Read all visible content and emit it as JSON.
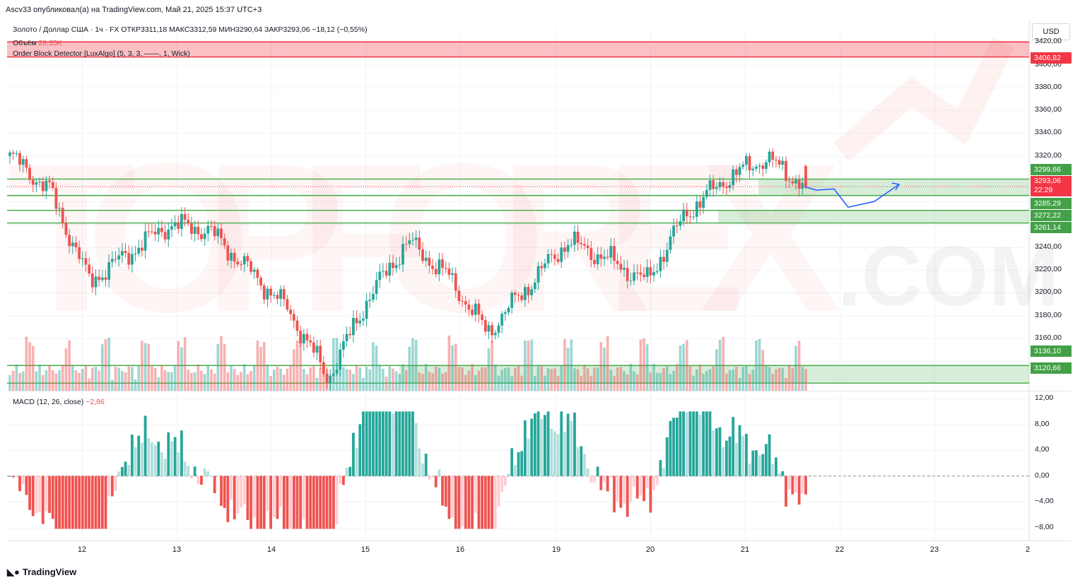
{
  "header": {
    "publisher": "Ascv33 опубликовал(а) на TradingView.com, Май 21, 2025 15:37 UTC+3",
    "symbol_line": "Золото / Доллар США · 1ч · FX  ОТКР3311,18  МАКС3312,59  МИН3290,64  ЗАКР3293,06  −18,12 (−0,55%)",
    "volume_label": "Объём",
    "volume_value": "28,35K",
    "indicator_label": "Order Block Detector [LuxAlgo] (5, 3, 3, ——, 1, Wick)",
    "macd_label": "MACD (12, 26, close)",
    "macd_value": "−2,86",
    "currency": "USD"
  },
  "watermark": {
    "text": "TOPFOREX",
    "suffix": ".COM"
  },
  "colors": {
    "bull": "#26a69a",
    "bear": "#ef5350",
    "bull_light": "#b2dfdb",
    "bear_light": "#ffcdd2",
    "zone_green": "#4caf50",
    "zone_red": "#f23645",
    "path": "#2962ff"
  },
  "price_axis": {
    "labels": [
      "3420,00",
      "3400,00",
      "3380,00",
      "3360,00",
      "3340,00",
      "3320,00",
      "3240,00",
      "3220,00",
      "3200,00",
      "3180,00",
      "3160,00"
    ],
    "range": [
      3114,
      3432
    ]
  },
  "macd_axis": {
    "labels": [
      "12,00",
      "8,00",
      "4,00",
      "0,00",
      "−4,00",
      "−8,00"
    ],
    "range": [
      -10,
      13
    ]
  },
  "price_boxes": [
    {
      "label": "3406,82",
      "color": "#f23645"
    },
    {
      "label": "3299,66",
      "color": "#43a047"
    },
    {
      "label": "3293,06",
      "sub": "22:29",
      "color": "#f23645"
    },
    {
      "label": "3285,29",
      "color": "#43a047"
    },
    {
      "label": "3272,22",
      "color": "#43a047"
    },
    {
      "label": "3261,14",
      "color": "#43a047"
    },
    {
      "label": "3136,10",
      "color": "#43a047"
    },
    {
      "label": "3120,66",
      "color": "#43a047"
    }
  ],
  "time_axis": [
    "12",
    "13",
    "14",
    "15",
    "16",
    "19",
    "20",
    "21",
    "22",
    "23",
    "2"
  ],
  "footer": {
    "brand": "TradingView"
  },
  "chart_data": {
    "type": "candlestick",
    "symbol": "Золото / Доллар США",
    "interval": "1ч",
    "ohlc_last": {
      "open": 3311.18,
      "high": 3312.59,
      "low": 3290.64,
      "close": 3293.06,
      "change": -18.12,
      "change_pct": -0.55
    },
    "last_price": 3293.06,
    "zones": [
      {
        "type": "bearish",
        "top": 3420.0,
        "bottom": 3406.82
      },
      {
        "type": "bullish",
        "top": 3299.66,
        "bottom": 3285.29
      },
      {
        "type": "bullish",
        "top": 3272.22,
        "bottom": 3261.14
      },
      {
        "type": "bullish",
        "top": 3136.1,
        "bottom": 3120.66
      }
    ],
    "key_points": [
      {
        "date": "11",
        "close": 3320
      },
      {
        "date": "12",
        "close": 3290
      },
      {
        "date": "12",
        "close": 3210
      },
      {
        "date": "13",
        "close": 3235
      },
      {
        "date": "13",
        "close": 3260
      },
      {
        "date": "14",
        "close": 3255
      },
      {
        "date": "14",
        "close": 3220
      },
      {
        "date": "15",
        "close": 3185
      },
      {
        "date": "15",
        "close": 3125
      },
      {
        "date": "16",
        "close": 3195
      },
      {
        "date": "16",
        "close": 3245
      },
      {
        "date": "16",
        "close": 3215
      },
      {
        "date": "16",
        "close": 3165
      },
      {
        "date": "19",
        "close": 3205
      },
      {
        "date": "19",
        "close": 3245
      },
      {
        "date": "20",
        "close": 3230
      },
      {
        "date": "20",
        "close": 3210
      },
      {
        "date": "20",
        "close": 3270
      },
      {
        "date": "21",
        "close": 3300
      },
      {
        "date": "21",
        "close": 3318
      },
      {
        "date": "21",
        "close": 3293.06
      }
    ],
    "projection": [
      3293,
      3290,
      3291,
      3275,
      3280,
      3295
    ],
    "macd_histogram_last": -2.86
  }
}
